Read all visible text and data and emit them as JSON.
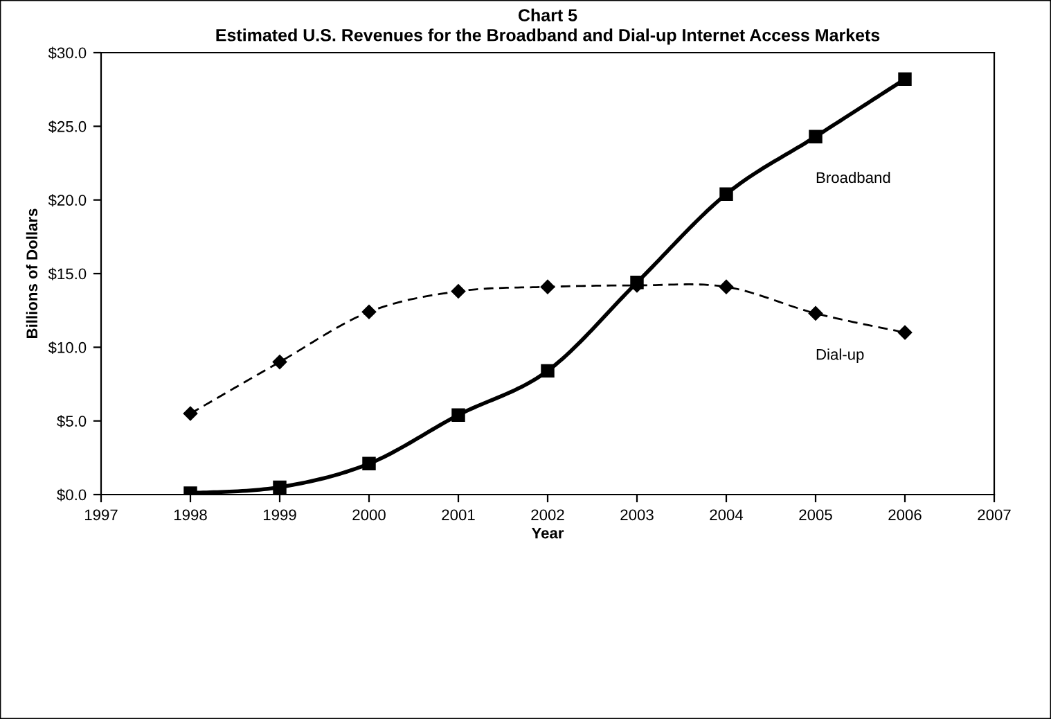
{
  "chart_data": {
    "type": "line",
    "title": "Chart 5\nEstimated U.S. Revenues for the Broadband and Dial-up Internet Access Markets",
    "xlabel": "Year",
    "ylabel": "Billions of Dollars",
    "x": [
      1998,
      1999,
      2000,
      2001,
      2002,
      2003,
      2004,
      2005,
      2006
    ],
    "series": [
      {
        "name": "Broadband",
        "color": "#000000",
        "marker": "square",
        "line_style": "solid",
        "values": [
          0.1,
          0.5,
          2.1,
          5.4,
          8.4,
          14.4,
          20.4,
          24.3,
          28.2
        ]
      },
      {
        "name": "Dial-up",
        "color": "#000000",
        "marker": "diamond",
        "line_style": "dashed",
        "values": [
          5.5,
          9.0,
          12.4,
          13.8,
          14.1,
          14.2,
          14.1,
          12.3,
          11.0
        ]
      }
    ],
    "xlim": [
      1997,
      2007
    ],
    "xticks": [
      1997,
      1998,
      1999,
      2000,
      2001,
      2002,
      2003,
      2004,
      2005,
      2006,
      2007
    ],
    "ylim": [
      0,
      30
    ],
    "yticks": [
      {
        "value": 0,
        "label": "$0.0"
      },
      {
        "value": 5,
        "label": "$5.0"
      },
      {
        "value": 10,
        "label": "$10.0"
      },
      {
        "value": 15,
        "label": "$15.0"
      },
      {
        "value": 20,
        "label": "$20.0"
      },
      {
        "value": 25,
        "label": "$25.0"
      },
      {
        "value": 30,
        "label": "$30.0"
      }
    ],
    "grid": false,
    "legend": false
  }
}
